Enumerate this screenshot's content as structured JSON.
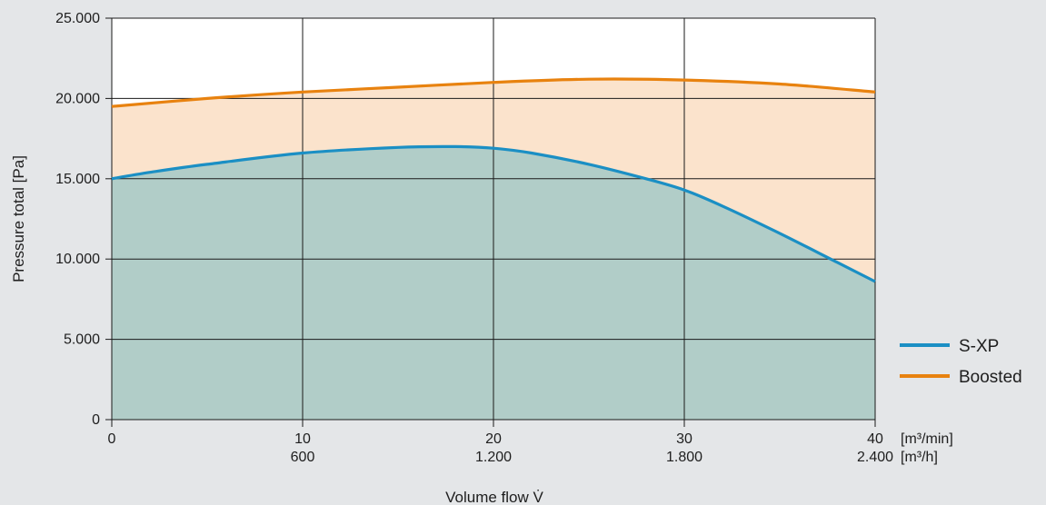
{
  "chart_data": {
    "type": "area",
    "title": "",
    "xlabel": "Volume flow V̇",
    "ylabel": "Pressure total [Pa]",
    "xlim": [
      0,
      40
    ],
    "ylim": [
      0,
      25000
    ],
    "grid": true,
    "legend_position": "right",
    "x_ticks": [
      {
        "value": 0,
        "primary": "0",
        "secondary": ""
      },
      {
        "value": 10,
        "primary": "10",
        "secondary": "600"
      },
      {
        "value": 20,
        "primary": "20",
        "secondary": "1.200"
      },
      {
        "value": 30,
        "primary": "30",
        "secondary": "1.800"
      },
      {
        "value": 40,
        "primary": "40",
        "secondary": "2.400"
      }
    ],
    "x_units": {
      "primary": "[m³/min]",
      "secondary": "[m³/h]"
    },
    "y_ticks": [
      {
        "value": 0,
        "label": "0"
      },
      {
        "value": 5000,
        "label": "5.000"
      },
      {
        "value": 10000,
        "label": "10.000"
      },
      {
        "value": 15000,
        "label": "15.000"
      },
      {
        "value": 20000,
        "label": "20.000"
      },
      {
        "value": 25000,
        "label": "25.000"
      }
    ],
    "series": [
      {
        "name": "Boosted",
        "color": "#e8820f",
        "fill": "#fbe3cc",
        "x": [
          0,
          5,
          10,
          15,
          20,
          25,
          30,
          35,
          40
        ],
        "y": [
          19500,
          20000,
          20400,
          20700,
          21000,
          21200,
          21150,
          20900,
          20400
        ]
      },
      {
        "name": "S-XP",
        "color": "#1b8fc4",
        "fill": "#b1cdc8",
        "x": [
          0,
          2,
          5,
          10,
          15,
          18,
          20,
          22,
          25,
          28,
          30,
          32,
          35,
          38,
          40
        ],
        "y": [
          15000,
          15400,
          15900,
          16600,
          16950,
          17000,
          16900,
          16600,
          15900,
          15000,
          14300,
          13300,
          11600,
          9800,
          8600
        ]
      }
    ]
  }
}
